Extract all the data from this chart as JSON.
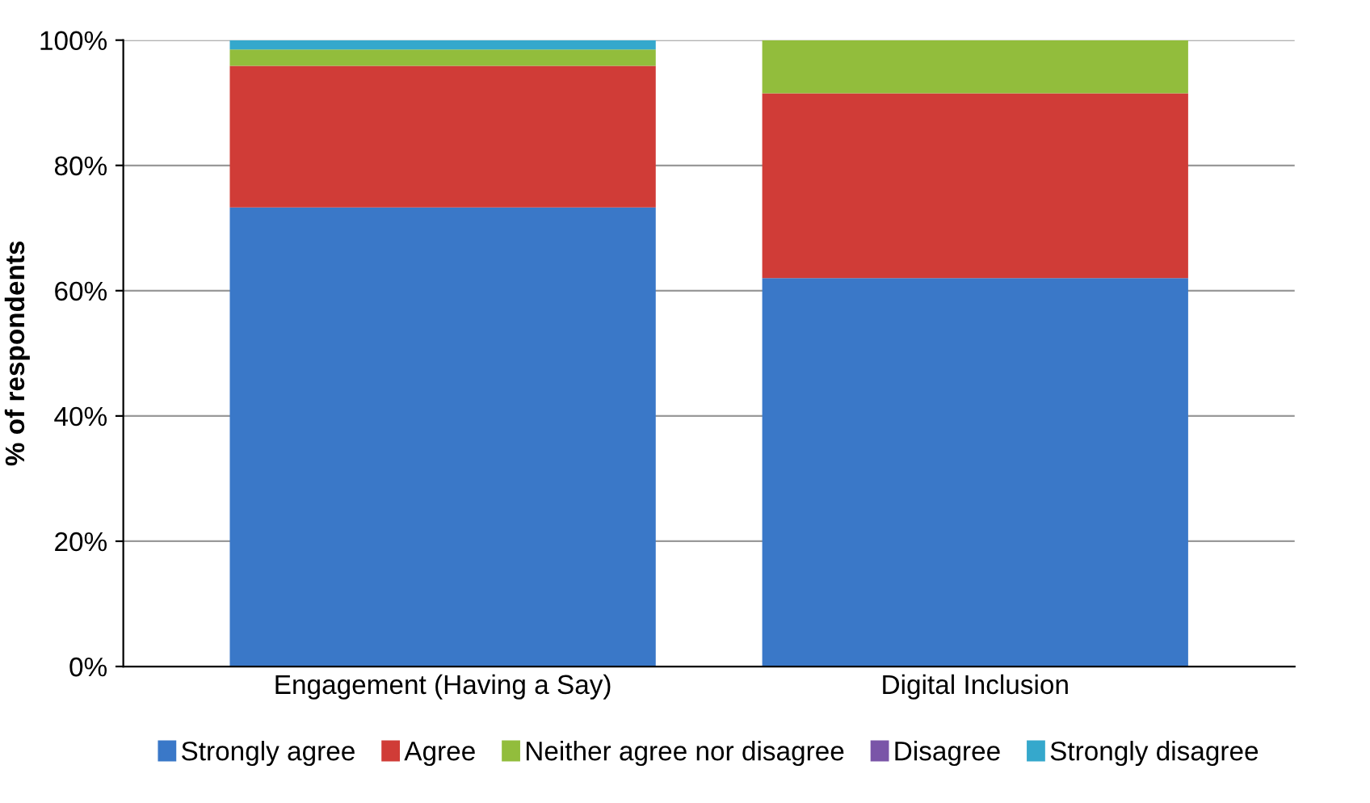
{
  "chart_data": {
    "type": "bar",
    "stacked": true,
    "ylabel": "% of respondents",
    "categories": [
      "Engagement (Having a Say)",
      "Digital Inclusion"
    ],
    "series": [
      {
        "name": "Strongly agree",
        "color": "#3a78c8",
        "values": [
          73.3,
          62
        ]
      },
      {
        "name": "Agree",
        "color": "#d03c37",
        "values": [
          22.6,
          29.5
        ]
      },
      {
        "name": "Neither agree nor disagree",
        "color": "#92bd3c",
        "values": [
          2.6,
          8.5
        ]
      },
      {
        "name": "Disagree",
        "color": "#7a55a8",
        "values": [
          0,
          0
        ]
      },
      {
        "name": "Strongly disagree",
        "color": "#35a8cc",
        "values": [
          1.5,
          0
        ]
      }
    ],
    "ylim": [
      0,
      100
    ],
    "yticks": [
      {
        "value": 0,
        "label": "0%"
      },
      {
        "value": 20,
        "label": "20%"
      },
      {
        "value": 40,
        "label": "40%"
      },
      {
        "value": 60,
        "label": "60%"
      },
      {
        "value": 80,
        "label": "80%"
      },
      {
        "value": 100,
        "label": "100%"
      }
    ],
    "grid": "y",
    "legend": "bottom"
  }
}
